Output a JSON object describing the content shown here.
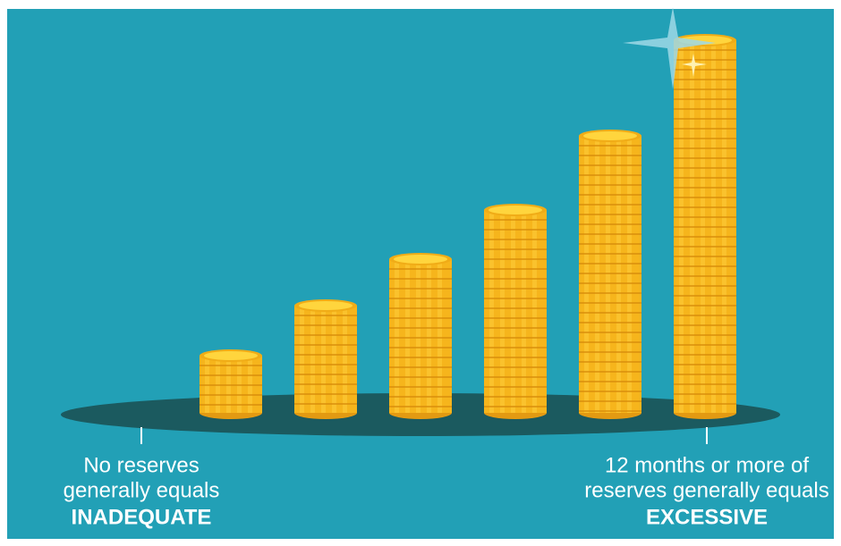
{
  "left": {
    "lines": [
      "No reserves",
      "generally equals"
    ],
    "verdict": "INADEQUATE"
  },
  "right": {
    "lines": [
      "12 months or more of",
      "reserves generally equals"
    ],
    "verdict": "EXCESSIVE"
  }
}
